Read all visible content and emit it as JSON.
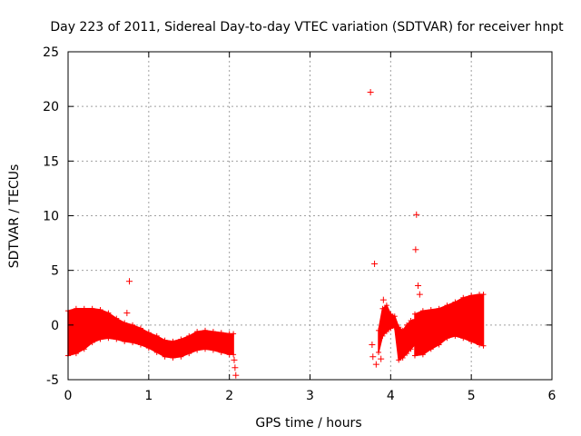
{
  "chart_data": {
    "type": "scatter",
    "title": "Day 223 of 2011, Sidereal Day-to-day VTEC variation (SDTVAR) for receiver hnpt",
    "xlabel": "GPS time / hours",
    "ylabel": "SDTVAR / TECUs",
    "xlim": [
      0,
      6
    ],
    "ylim": [
      -5,
      25
    ],
    "xticks": [
      0,
      1,
      2,
      3,
      4,
      5,
      6
    ],
    "yticks": [
      -5,
      0,
      5,
      10,
      15,
      20,
      25
    ],
    "xtick_labels": [
      "0",
      "1",
      "2",
      "3",
      "4",
      "5",
      "6"
    ],
    "ytick_labels": [
      "-5",
      "0",
      "5",
      "10",
      "15",
      "20",
      "25"
    ],
    "grid": true,
    "marker": "+",
    "color": "#ff0000",
    "series": [
      {
        "name": "SDTVAR",
        "segments": [
          {
            "x": [
              0.0,
              0.1,
              0.2,
              0.3,
              0.4,
              0.5,
              0.6,
              0.7,
              0.8,
              0.9,
              1.0,
              1.1,
              1.2,
              1.3,
              1.4,
              1.5,
              1.6,
              1.7,
              1.8,
              1.9,
              2.0,
              2.05
            ],
            "upper": [
              1.3,
              1.5,
              1.5,
              1.5,
              1.4,
              1.1,
              0.6,
              0.2,
              0.0,
              -0.3,
              -0.7,
              -1.0,
              -1.4,
              -1.5,
              -1.3,
              -1.0,
              -0.6,
              -0.5,
              -0.6,
              -0.7,
              -0.8,
              -0.8
            ],
            "lower": [
              -2.8,
              -2.6,
              -2.2,
              -1.6,
              -1.3,
              -1.2,
              -1.3,
              -1.5,
              -1.6,
              -1.8,
              -2.1,
              -2.5,
              -2.9,
              -3.0,
              -2.9,
              -2.6,
              -2.3,
              -2.2,
              -2.3,
              -2.5,
              -2.7,
              -2.7
            ]
          },
          {
            "x": [
              3.85,
              3.9,
              3.95,
              4.0,
              4.05,
              4.1,
              4.15,
              4.2,
              4.25,
              4.3
            ],
            "upper": [
              -0.5,
              1.5,
              1.8,
              1.0,
              0.8,
              -0.2,
              -0.5,
              0.0,
              0.4,
              0.5
            ],
            "lower": [
              -2.5,
              -1.0,
              -0.6,
              -0.3,
              -0.2,
              -3.2,
              -3.0,
              -2.6,
              -2.2,
              -1.8
            ]
          },
          {
            "x": [
              4.3,
              4.4,
              4.5,
              4.6,
              4.7,
              4.8,
              4.9,
              5.0,
              5.1,
              5.15
            ],
            "upper": [
              1.0,
              1.3,
              1.4,
              1.5,
              1.8,
              2.1,
              2.5,
              2.7,
              2.8,
              2.8
            ],
            "lower": [
              -2.8,
              -2.7,
              -2.2,
              -1.8,
              -1.2,
              -1.0,
              -1.2,
              -1.5,
              -1.8,
              -1.9
            ]
          }
        ],
        "scatter_points": [
          {
            "x": 0.76,
            "y": 4.0
          },
          {
            "x": 0.73,
            "y": 1.1
          },
          {
            "x": 2.06,
            "y": -3.2
          },
          {
            "x": 2.07,
            "y": -3.9
          },
          {
            "x": 2.08,
            "y": -4.6
          },
          {
            "x": 3.75,
            "y": 21.3
          },
          {
            "x": 3.8,
            "y": 5.6
          },
          {
            "x": 3.77,
            "y": -1.8
          },
          {
            "x": 3.78,
            "y": -2.9
          },
          {
            "x": 3.82,
            "y": -3.6
          },
          {
            "x": 3.88,
            "y": -3.1
          },
          {
            "x": 4.32,
            "y": 10.1
          },
          {
            "x": 4.31,
            "y": 6.9
          },
          {
            "x": 4.34,
            "y": 3.6
          },
          {
            "x": 4.36,
            "y": 2.8
          },
          {
            "x": 3.91,
            "y": 2.3
          }
        ]
      }
    ]
  }
}
